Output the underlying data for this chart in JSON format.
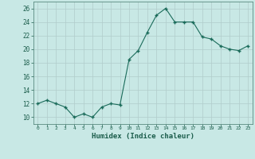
{
  "x": [
    0,
    1,
    2,
    3,
    4,
    5,
    6,
    7,
    8,
    9,
    10,
    11,
    12,
    13,
    14,
    15,
    16,
    17,
    18,
    19,
    20,
    21,
    22,
    23
  ],
  "y": [
    12,
    12.5,
    12,
    11.5,
    10,
    10.5,
    10,
    11.5,
    12,
    11.8,
    18.5,
    19.8,
    22.5,
    25,
    26,
    24,
    24,
    24,
    21.8,
    21.5,
    20.5,
    20,
    19.8,
    20.5
  ],
  "xlabel": "Humidex (Indice chaleur)",
  "ylim": [
    9,
    27
  ],
  "xlim": [
    -0.5,
    23.5
  ],
  "yticks": [
    10,
    12,
    14,
    16,
    18,
    20,
    22,
    24,
    26
  ],
  "xticks": [
    0,
    1,
    2,
    3,
    4,
    5,
    6,
    7,
    8,
    9,
    10,
    11,
    12,
    13,
    14,
    15,
    16,
    17,
    18,
    19,
    20,
    21,
    22,
    23
  ],
  "xtick_labels": [
    "0",
    "1",
    "2",
    "3",
    "4",
    "5",
    "6",
    "7",
    "8",
    "9",
    "10",
    "11",
    "12",
    "13",
    "14",
    "15",
    "16",
    "17",
    "18",
    "19",
    "20",
    "21",
    "22",
    "23"
  ],
  "line_color": "#1a6b5a",
  "marker_color": "#1a6b5a",
  "bg_color": "#c8e8e5",
  "grid_color": "#b0cccb",
  "axes_color": "#5a8a80",
  "tick_label_color": "#1a5c4a",
  "xlabel_color": "#1a5c4a",
  "font_family": "monospace"
}
